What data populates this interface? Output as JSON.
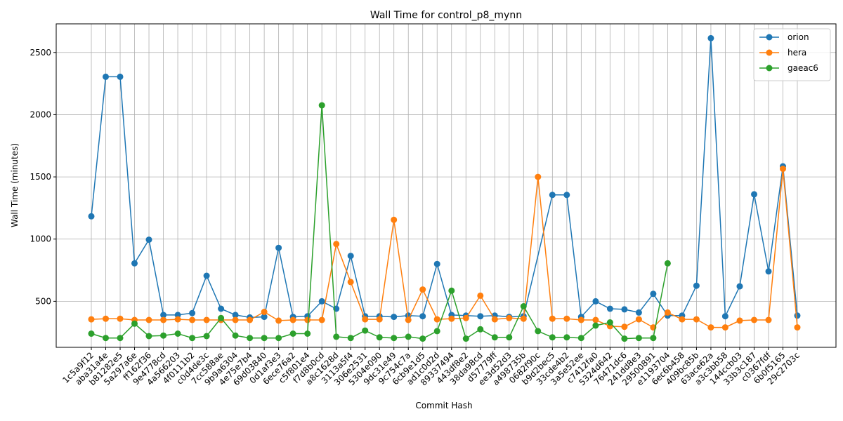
{
  "chart_data": {
    "type": "line",
    "title": "Wall Time for control_p8_mynn",
    "xlabel": "Commit Hash",
    "ylabel": "Wall Time (minutes)",
    "ylim": [
      130,
      2730
    ],
    "yticks": [
      500,
      1000,
      1500,
      2000,
      2500
    ],
    "grid": true,
    "legend_position": "top-right",
    "categories": [
      "1c5a9f12",
      "aba31a4e",
      "b81282e5",
      "5a297a6e",
      "ff162f36",
      "9e4778cd",
      "4a566203",
      "4f0111b2",
      "c0d4de3c",
      "7cc588ae",
      "9b9a6304",
      "4e75e7b4",
      "69d03840",
      "0d1af3e3",
      "6ece76a2",
      "c5f801e4",
      "f7d8b0cd",
      "a8c1628d",
      "3113a5f4",
      "306e2531",
      "5304e090",
      "9dc31e49",
      "9c754c7a",
      "6cb9e1d5",
      "ad1c0d2d",
      "89337494",
      "443df8e2",
      "38da98cd",
      "d57779ff",
      "ee3d52d3",
      "a498735b",
      "0682f90c",
      "b9d2bec5",
      "33cde4b2",
      "3a5e52ee",
      "c7412fa0",
      "5324d642",
      "76471dc6",
      "241dd8e3",
      "29500891",
      "e1193704",
      "6ec6b458",
      "409bc85b",
      "63ace62a",
      "a3c3bb58",
      "144ccb03",
      "33b3c187",
      "c0367fdf",
      "6b0f5165",
      "29c2703c"
    ],
    "series": [
      {
        "name": "orion",
        "color": "#1f77b4",
        "values": [
          1183,
          2305,
          2305,
          805,
          995,
          390,
          390,
          405,
          705,
          440,
          390,
          370,
          375,
          930,
          375,
          380,
          500,
          440,
          865,
          380,
          380,
          375,
          385,
          380,
          800,
          390,
          385,
          380,
          385,
          375,
          380,
          null,
          1355,
          1355,
          375,
          500,
          440,
          435,
          410,
          560,
          385,
          385,
          625,
          2615,
          380,
          620,
          1360,
          740,
          1585,
          385
        ]
      },
      {
        "name": "hera",
        "color": "#ff7f0e",
        "values": [
          355,
          360,
          360,
          350,
          350,
          350,
          355,
          350,
          350,
          350,
          350,
          350,
          415,
          345,
          350,
          350,
          350,
          960,
          655,
          355,
          355,
          1155,
          350,
          595,
          355,
          360,
          365,
          545,
          355,
          365,
          360,
          1500,
          360,
          360,
          350,
          350,
          300,
          295,
          355,
          290,
          410,
          355,
          355,
          290,
          290,
          345,
          350,
          350,
          1565,
          290
        ]
      },
      {
        "name": "gaeac6",
        "color": "#2ca02c",
        "values": [
          240,
          205,
          205,
          320,
          220,
          225,
          240,
          205,
          220,
          365,
          225,
          205,
          205,
          205,
          240,
          240,
          2075,
          215,
          205,
          265,
          210,
          205,
          215,
          200,
          260,
          585,
          200,
          275,
          210,
          210,
          460,
          260,
          210,
          210,
          205,
          305,
          330,
          200,
          205,
          205,
          805,
          null,
          null,
          null,
          null,
          null,
          null,
          null,
          null,
          null
        ]
      }
    ]
  }
}
